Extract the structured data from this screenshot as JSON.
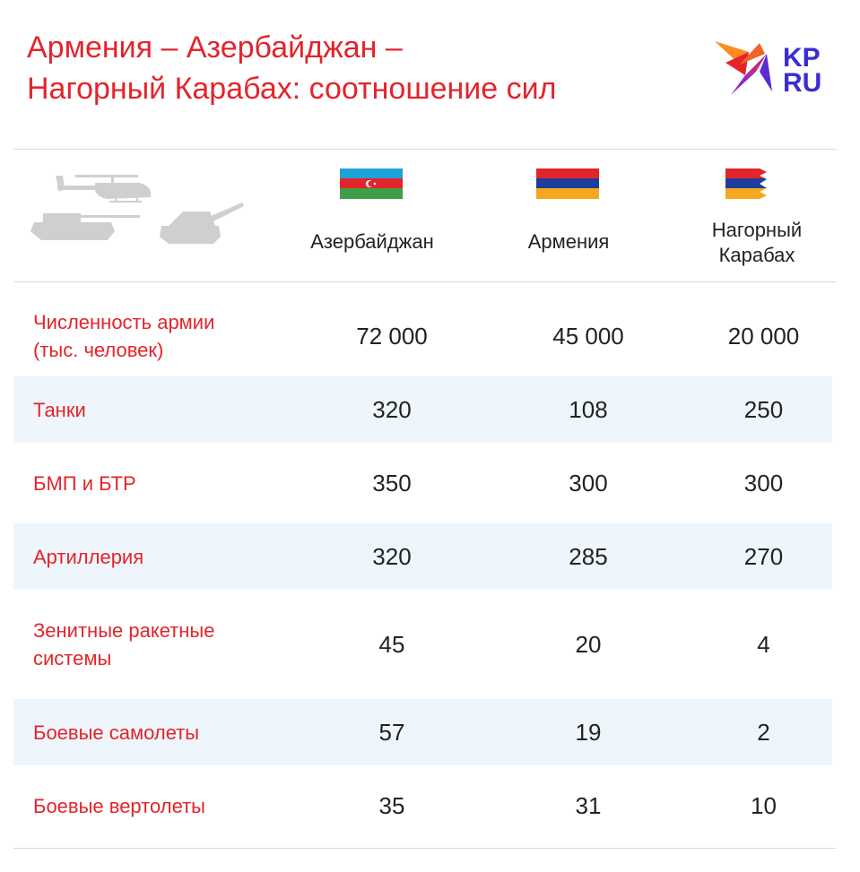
{
  "title_line1": "Армения – Азербайджан –",
  "title_line2": "Нагорный Карабах: соотношение сил",
  "logo": {
    "text_top": "KP",
    "text_bottom": "RU"
  },
  "colors": {
    "accent": "#e3242b",
    "alt_row": "#eef6fc",
    "silhouette": "#cfcfcf"
  },
  "icons": [
    "helicopter-icon",
    "tank-icon",
    "artillery-icon"
  ],
  "columns": [
    {
      "name": "Азербайджан",
      "flag": "azerbaijan-flag"
    },
    {
      "name": "Армения",
      "flag": "armenia-flag"
    },
    {
      "name_line1": "Нагорный",
      "name_line2": "Карабах",
      "flag": "karabakh-flag"
    }
  ],
  "chart_data": {
    "type": "table",
    "columns": [
      "Азербайджан",
      "Армения",
      "Нагорный Карабах"
    ],
    "rows": [
      {
        "label_line1": "Численность армии",
        "label_line2": "(тыс. человек)",
        "values": [
          "72 000",
          "45 000",
          "20 000"
        ]
      },
      {
        "label_line1": "Танки",
        "values": [
          "320",
          "108",
          "250"
        ]
      },
      {
        "label_line1": "БМП и БТР",
        "values": [
          "350",
          "300",
          "300"
        ]
      },
      {
        "label_line1": "Артиллерия",
        "values": [
          "320",
          "285",
          "270"
        ]
      },
      {
        "label_line1": "Зенитные ракетные",
        "label_line2": "системы",
        "values": [
          "45",
          "20",
          "4"
        ]
      },
      {
        "label_line1": "Боевые самолеты",
        "values": [
          "57",
          "19",
          "2"
        ]
      },
      {
        "label_line1": "Боевые вертолеты",
        "values": [
          "35",
          "31",
          "10"
        ]
      }
    ]
  }
}
